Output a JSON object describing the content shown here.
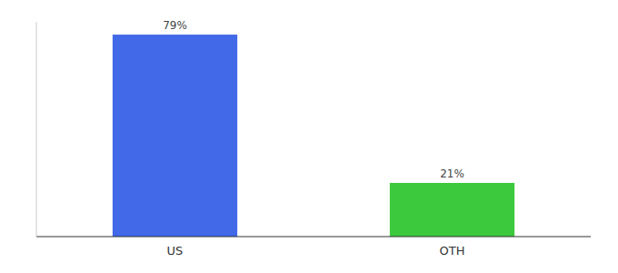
{
  "chart_data": {
    "type": "bar",
    "categories": [
      "US",
      "OTH"
    ],
    "values": [
      79,
      21
    ],
    "value_labels": [
      "79%",
      "21%"
    ],
    "colors": [
      "#4169e8",
      "#3dc93d"
    ],
    "ylim": [
      0,
      84
    ],
    "data_labels": true,
    "tick_labels": "x"
  }
}
